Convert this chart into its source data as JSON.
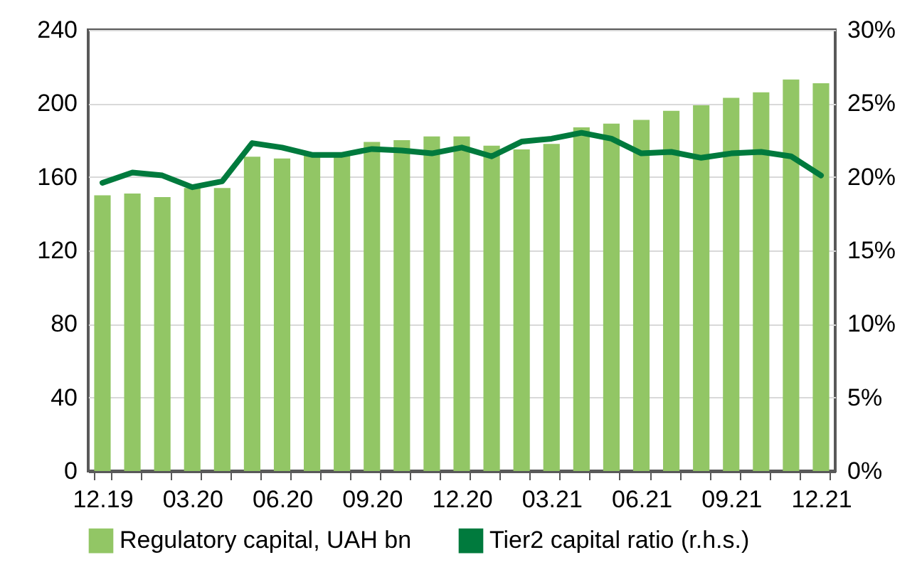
{
  "chart_data": {
    "type": "bar",
    "categories": [
      "12.19",
      null,
      null,
      "03.20",
      null,
      null,
      "06.20",
      null,
      null,
      "09.20",
      null,
      null,
      "12.20",
      null,
      null,
      "03.21",
      null,
      null,
      "06.21",
      null,
      null,
      "09.21",
      null,
      null,
      "12.21"
    ],
    "series": [
      {
        "name": "Regulatory capital, UAH bn",
        "color": "#92c665",
        "values": [
          150,
          151,
          149,
          154,
          154,
          171,
          170,
          172,
          172,
          179,
          180,
          182,
          182,
          177,
          175,
          178,
          187,
          189,
          191,
          196,
          199,
          203,
          206,
          213,
          211
        ]
      },
      {
        "name": "Tier2 capital ratio (r.h.s.)",
        "type": "line",
        "axis": "y2",
        "color": "#007a3d",
        "values": [
          19.6,
          20.3,
          20.1,
          19.3,
          19.7,
          22.3,
          22.0,
          21.5,
          21.5,
          21.9,
          21.8,
          21.6,
          22.0,
          21.4,
          22.4,
          22.6,
          23.0,
          22.6,
          21.6,
          21.7,
          21.3,
          21.6,
          21.7,
          21.4,
          20.1
        ]
      }
    ],
    "ylim": [
      0,
      240
    ],
    "yticks": [
      0,
      40,
      80,
      120,
      160,
      200,
      240
    ],
    "y2lim": [
      0,
      30
    ],
    "y2ticks": [
      {
        "value": 0,
        "label": "0%"
      },
      {
        "value": 5,
        "label": "5%"
      },
      {
        "value": 10,
        "label": "10%"
      },
      {
        "value": 15,
        "label": "15%"
      },
      {
        "value": 20,
        "label": "20%"
      },
      {
        "value": 25,
        "label": "25%"
      },
      {
        "value": 30,
        "label": "30%"
      }
    ],
    "grid": "y",
    "legend": "bottom"
  }
}
